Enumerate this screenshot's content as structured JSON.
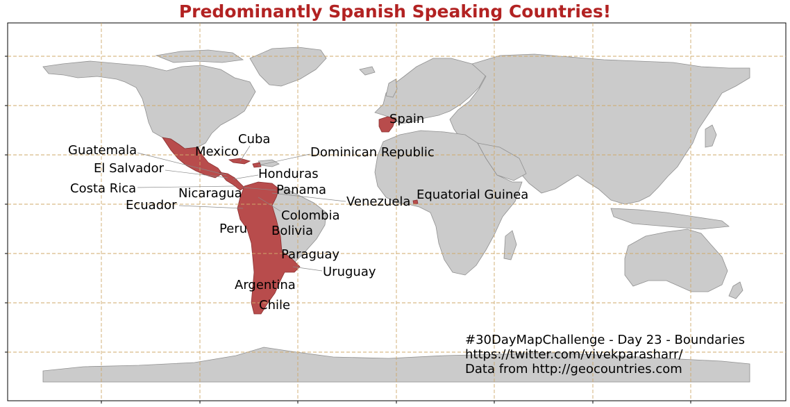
{
  "title": "Predominantly Spanish Speaking Countries!",
  "colors": {
    "highlight": "#b84c4c",
    "land": "#cbcbcb",
    "title": "#b22222",
    "grid": "#cfa86a"
  },
  "countries": {
    "spain": "Spain",
    "cuba": "Cuba",
    "guatemala": "Guatemala",
    "mexico": "Mexico",
    "dominican_republic": "Dominican Republic",
    "el_salvador": "El Salvador",
    "honduras": "Honduras",
    "costa_rica": "Costa Rica",
    "nicaragua": "Nicaragua",
    "panama": "Panama",
    "equatorial_guinea": "Equatorial Guinea",
    "ecuador": "Ecuador",
    "venezuela": "Venezuela",
    "colombia": "Colombia",
    "peru": "Peru",
    "bolivia": "Bolivia",
    "paraguay": "Paraguay",
    "uruguay": "Uruguay",
    "argentina": "Argentina",
    "chile": "Chile"
  },
  "credits": [
    "#30DayMapChallenge - Day 23 - Boundaries",
    "https://twitter.com/vivekparasharr/",
    "Data from http://geocountries.com"
  ]
}
